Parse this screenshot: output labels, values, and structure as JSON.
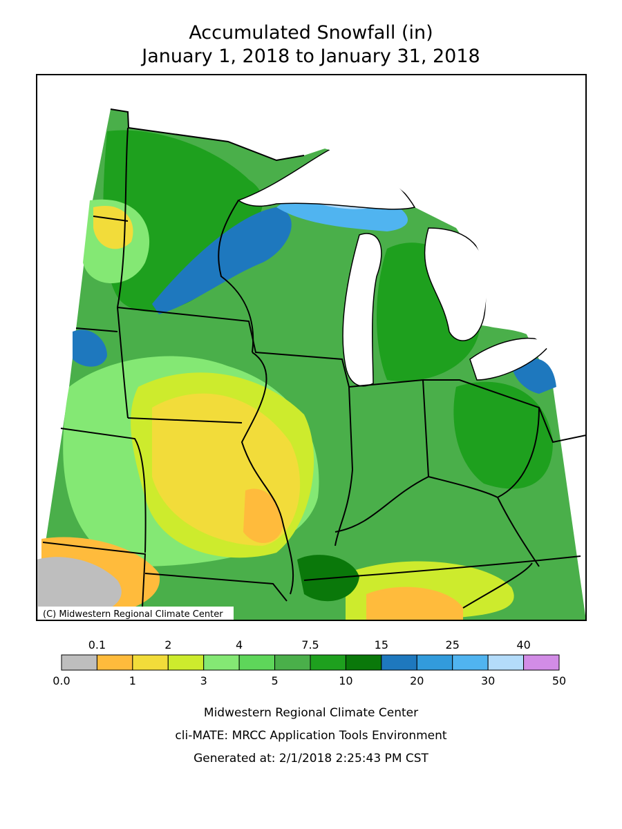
{
  "title": {
    "line1": "Accumulated Snowfall (in)",
    "line2": "January 1, 2018 to January 31, 2018"
  },
  "map": {
    "credit": "(C) Midwestern Regional Climate Center"
  },
  "legend": {
    "colors": [
      "#bebebe",
      "#ffbb3c",
      "#f2dc3a",
      "#cdeb2d",
      "#84e874",
      "#5ed65a",
      "#4aaf4a",
      "#1ea01e",
      "#0a780a",
      "#1e78be",
      "#329bdc",
      "#50b4f0",
      "#b4dcfa",
      "#d28ce6"
    ],
    "top_labels": [
      "0.1",
      "2",
      "4",
      "7.5",
      "15",
      "25",
      "40"
    ],
    "bottom_labels": [
      "0.0",
      "1",
      "3",
      "5",
      "10",
      "20",
      "30",
      "50"
    ]
  },
  "footer": {
    "line1": "Midwestern Regional Climate Center",
    "line2": "cli-MATE: MRCC Application Tools Environment",
    "line3": "Generated at: 2/1/2018 2:25:43 PM CST"
  }
}
